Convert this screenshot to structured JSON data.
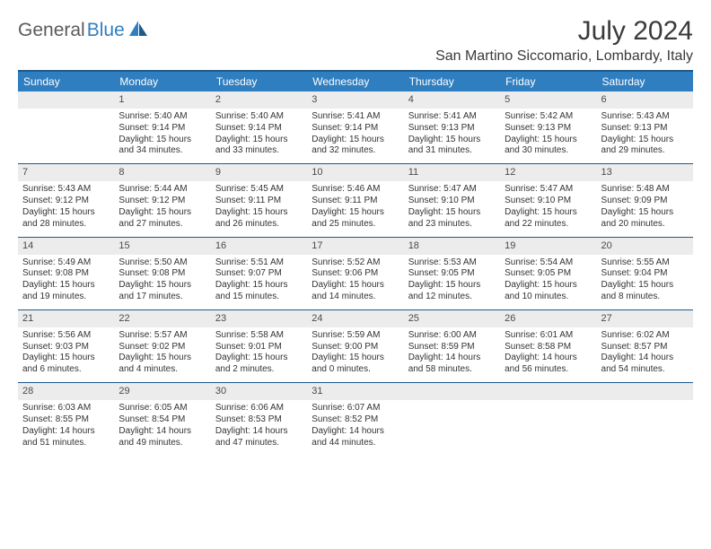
{
  "logo": {
    "text1": "General",
    "text2": "Blue"
  },
  "title": "July 2024",
  "location": "San Martino Siccomario, Lombardy, Italy",
  "colors": {
    "header_bg": "#2f7ec0",
    "header_border": "#1e5a8a",
    "daynum_bg": "#ececec",
    "text": "#333333",
    "logo_gray": "#5a5a5a",
    "logo_blue": "#2f7ec0"
  },
  "weekdays": [
    "Sunday",
    "Monday",
    "Tuesday",
    "Wednesday",
    "Thursday",
    "Friday",
    "Saturday"
  ],
  "weeks": [
    [
      null,
      {
        "n": "1",
        "sr": "5:40 AM",
        "ss": "9:14 PM",
        "dl": "15 hours and 34 minutes."
      },
      {
        "n": "2",
        "sr": "5:40 AM",
        "ss": "9:14 PM",
        "dl": "15 hours and 33 minutes."
      },
      {
        "n": "3",
        "sr": "5:41 AM",
        "ss": "9:14 PM",
        "dl": "15 hours and 32 minutes."
      },
      {
        "n": "4",
        "sr": "5:41 AM",
        "ss": "9:13 PM",
        "dl": "15 hours and 31 minutes."
      },
      {
        "n": "5",
        "sr": "5:42 AM",
        "ss": "9:13 PM",
        "dl": "15 hours and 30 minutes."
      },
      {
        "n": "6",
        "sr": "5:43 AM",
        "ss": "9:13 PM",
        "dl": "15 hours and 29 minutes."
      }
    ],
    [
      {
        "n": "7",
        "sr": "5:43 AM",
        "ss": "9:12 PM",
        "dl": "15 hours and 28 minutes."
      },
      {
        "n": "8",
        "sr": "5:44 AM",
        "ss": "9:12 PM",
        "dl": "15 hours and 27 minutes."
      },
      {
        "n": "9",
        "sr": "5:45 AM",
        "ss": "9:11 PM",
        "dl": "15 hours and 26 minutes."
      },
      {
        "n": "10",
        "sr": "5:46 AM",
        "ss": "9:11 PM",
        "dl": "15 hours and 25 minutes."
      },
      {
        "n": "11",
        "sr": "5:47 AM",
        "ss": "9:10 PM",
        "dl": "15 hours and 23 minutes."
      },
      {
        "n": "12",
        "sr": "5:47 AM",
        "ss": "9:10 PM",
        "dl": "15 hours and 22 minutes."
      },
      {
        "n": "13",
        "sr": "5:48 AM",
        "ss": "9:09 PM",
        "dl": "15 hours and 20 minutes."
      }
    ],
    [
      {
        "n": "14",
        "sr": "5:49 AM",
        "ss": "9:08 PM",
        "dl": "15 hours and 19 minutes."
      },
      {
        "n": "15",
        "sr": "5:50 AM",
        "ss": "9:08 PM",
        "dl": "15 hours and 17 minutes."
      },
      {
        "n": "16",
        "sr": "5:51 AM",
        "ss": "9:07 PM",
        "dl": "15 hours and 15 minutes."
      },
      {
        "n": "17",
        "sr": "5:52 AM",
        "ss": "9:06 PM",
        "dl": "15 hours and 14 minutes."
      },
      {
        "n": "18",
        "sr": "5:53 AM",
        "ss": "9:05 PM",
        "dl": "15 hours and 12 minutes."
      },
      {
        "n": "19",
        "sr": "5:54 AM",
        "ss": "9:05 PM",
        "dl": "15 hours and 10 minutes."
      },
      {
        "n": "20",
        "sr": "5:55 AM",
        "ss": "9:04 PM",
        "dl": "15 hours and 8 minutes."
      }
    ],
    [
      {
        "n": "21",
        "sr": "5:56 AM",
        "ss": "9:03 PM",
        "dl": "15 hours and 6 minutes."
      },
      {
        "n": "22",
        "sr": "5:57 AM",
        "ss": "9:02 PM",
        "dl": "15 hours and 4 minutes."
      },
      {
        "n": "23",
        "sr": "5:58 AM",
        "ss": "9:01 PM",
        "dl": "15 hours and 2 minutes."
      },
      {
        "n": "24",
        "sr": "5:59 AM",
        "ss": "9:00 PM",
        "dl": "15 hours and 0 minutes."
      },
      {
        "n": "25",
        "sr": "6:00 AM",
        "ss": "8:59 PM",
        "dl": "14 hours and 58 minutes."
      },
      {
        "n": "26",
        "sr": "6:01 AM",
        "ss": "8:58 PM",
        "dl": "14 hours and 56 minutes."
      },
      {
        "n": "27",
        "sr": "6:02 AM",
        "ss": "8:57 PM",
        "dl": "14 hours and 54 minutes."
      }
    ],
    [
      {
        "n": "28",
        "sr": "6:03 AM",
        "ss": "8:55 PM",
        "dl": "14 hours and 51 minutes."
      },
      {
        "n": "29",
        "sr": "6:05 AM",
        "ss": "8:54 PM",
        "dl": "14 hours and 49 minutes."
      },
      {
        "n": "30",
        "sr": "6:06 AM",
        "ss": "8:53 PM",
        "dl": "14 hours and 47 minutes."
      },
      {
        "n": "31",
        "sr": "6:07 AM",
        "ss": "8:52 PM",
        "dl": "14 hours and 44 minutes."
      },
      null,
      null,
      null
    ]
  ],
  "labels": {
    "sunrise": "Sunrise: ",
    "sunset": "Sunset: ",
    "daylight": "Daylight: "
  }
}
